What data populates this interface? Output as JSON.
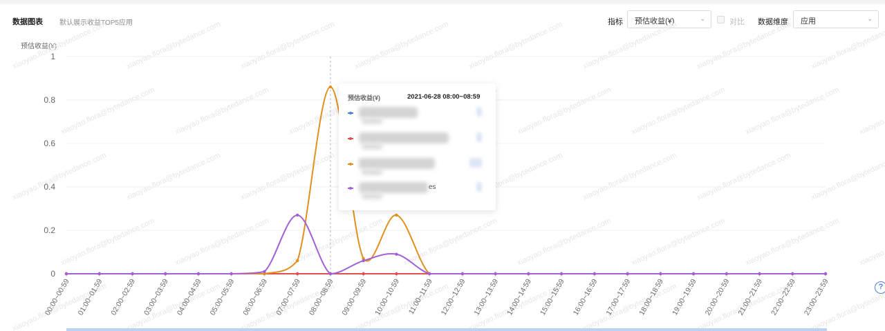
{
  "header": {
    "title": "数据图表",
    "subtitle": "默认展示收益TOP5应用",
    "metric_label": "指标",
    "metric_value": "预估收益(¥)",
    "compare_label": "对比",
    "dimension_label": "数据维度",
    "dimension_value": "应用"
  },
  "watermark": "xiaoyao.flora@bytedance.com",
  "help_icon": "?",
  "tooltip": {
    "title": "预估收益(¥)",
    "time": "2021-06-28 08:00~08:59",
    "rows": [
      {
        "color": "#4a7fd6",
        "suffix": ""
      },
      {
        "color": "#e05050",
        "suffix": ""
      },
      {
        "color": "#e0901f",
        "suffix": ""
      },
      {
        "color": "#a25fd6",
        "suffix": "es"
      }
    ]
  },
  "chart_data": {
    "type": "line",
    "title": "",
    "ylabel": "预估收益(¥)",
    "xlabel": "",
    "ylim": [
      0,
      1
    ],
    "yticks": [
      "0",
      "0.2",
      "0.4",
      "0.6",
      "0.8",
      "1"
    ],
    "grid": true,
    "categories": [
      "00:00~00:59",
      "01:00~01:59",
      "02:00~02:59",
      "03:00~03:59",
      "04:00~04:59",
      "05:00~05:59",
      "06:00~06:59",
      "07:00~07:59",
      "08:00~08:59",
      "09:00~09:59",
      "10:00~10:59",
      "11:00~11:59",
      "12:00~12:59",
      "13:00~13:59",
      "14:00~14:59",
      "15:00~15:59",
      "16:00~16:59",
      "17:00~17:59",
      "18:00~18:59",
      "19:00~19:59",
      "20:00~20:59",
      "21:00~21:59",
      "22:00~22:59",
      "23:00~23:59"
    ],
    "series": [
      {
        "color": "#4a7fd6",
        "values": [
          0,
          0,
          0,
          0,
          0,
          0,
          0,
          0,
          0,
          0,
          0,
          0,
          0,
          0,
          0,
          0,
          0,
          0,
          0,
          0,
          0,
          0,
          0,
          0
        ]
      },
      {
        "color": "#e05050",
        "values": [
          0,
          0,
          0,
          0,
          0,
          0,
          0,
          0,
          0,
          0,
          0,
          0,
          0,
          0,
          0,
          0,
          0,
          0,
          0,
          0,
          0,
          0,
          0,
          0
        ]
      },
      {
        "color": "#e0901f",
        "values": [
          0,
          0,
          0,
          0,
          0,
          0,
          0,
          0.06,
          0.86,
          0.07,
          0.27,
          0,
          0,
          0,
          0,
          0,
          0,
          0,
          0,
          0,
          0,
          0,
          0,
          0
        ]
      },
      {
        "color": "#a25fd6",
        "values": [
          0,
          0,
          0,
          0,
          0,
          0,
          0.01,
          0.27,
          0,
          0.06,
          0.09,
          0,
          0,
          0,
          0,
          0,
          0,
          0,
          0,
          0,
          0,
          0,
          0,
          0
        ]
      }
    ]
  }
}
